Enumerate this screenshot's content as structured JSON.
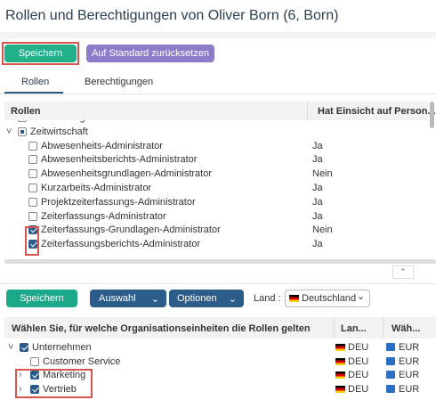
{
  "header": {
    "title": "Rollen und Berechtigungen von Oliver Born (6, Born)"
  },
  "actions": {
    "save": "Speichern",
    "reset": "Auf Standard zurücksetzen"
  },
  "tabs": [
    "Rollen",
    "Berechtigungen"
  ],
  "roles_table": {
    "columns": [
      "Rollen",
      "Hat Einsicht auf Person..."
    ],
    "rows": [
      {
        "label": "Reisemanagement"
      },
      {
        "label": "Zeitwirtschaft"
      },
      {
        "label": "Abwesenheits-Administrator",
        "value": "Ja"
      },
      {
        "label": "Abwesenheitsberichts-Administrator",
        "value": "Ja"
      },
      {
        "label": "Abwesenheitsgrundlagen-Administrator",
        "value": "Nein"
      },
      {
        "label": "Kurzarbeits-Administrator",
        "value": "Ja"
      },
      {
        "label": "Projektzeiterfassungs-Administrator",
        "value": "Ja"
      },
      {
        "label": "Zeiterfassungs-Administrator",
        "value": "Ja"
      },
      {
        "label": "Zeiterfassungs-Grundlagen-Administrator",
        "value": "Nein"
      },
      {
        "label": "Zeiterfassungsberichts-Administrator",
        "value": "Ja"
      }
    ]
  },
  "toolbar": {
    "save": "Speichern",
    "selection": "Auswahl",
    "options": "Optionen",
    "country_label": "Land :",
    "country": "Deutschland"
  },
  "units_table": {
    "columns": [
      "Wählen Sie, für welche Organisationseinheiten die Rollen gelten",
      "Lan...",
      "Wäh..."
    ],
    "rows": [
      {
        "label": "Unternehmen",
        "country": "DEU",
        "currency": "EUR"
      },
      {
        "label": "Customer Service",
        "country": "DEU",
        "currency": "EUR"
      },
      {
        "label": "Marketing",
        "country": "DEU",
        "currency": "EUR"
      },
      {
        "label": "Vertrieb",
        "country": "DEU",
        "currency": "EUR"
      }
    ]
  }
}
